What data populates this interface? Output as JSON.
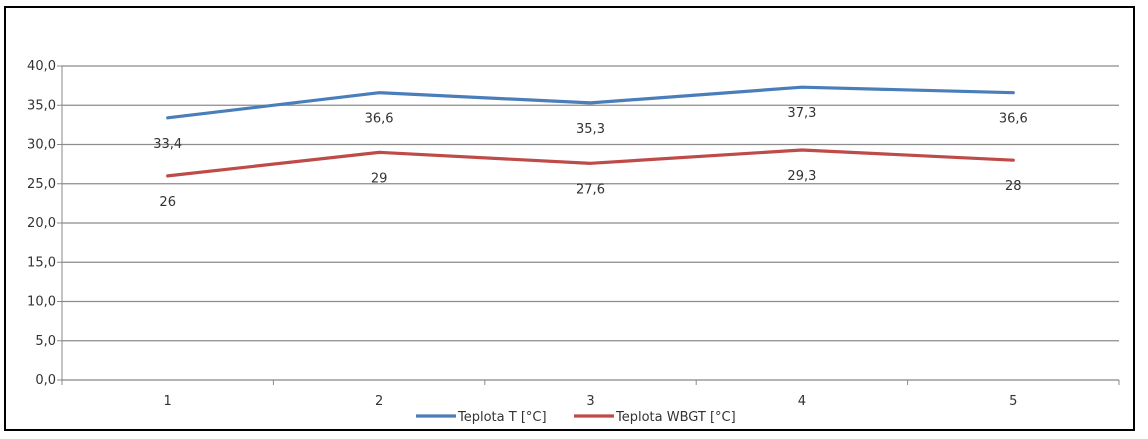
{
  "chart_data": {
    "type": "line",
    "title": "",
    "xlabel": "",
    "ylabel": "",
    "categories": [
      "1",
      "2",
      "3",
      "4",
      "5"
    ],
    "ylim": [
      0,
      40
    ],
    "ytick_step": 5,
    "y_ticks": [
      "0,0",
      "5,0",
      "10,0",
      "15,0",
      "20,0",
      "25,0",
      "30,0",
      "35,0",
      "40,0"
    ],
    "grid": true,
    "legend": "bottom",
    "series": [
      {
        "name": "Teplota T [°C]",
        "color": "#4A7EBB",
        "values": [
          33.4,
          36.6,
          35.3,
          37.3,
          36.6
        ],
        "labels": [
          "33,4",
          "36,6",
          "35,3",
          "37,3",
          "36,6"
        ]
      },
      {
        "name": "Teplota WBGT [°C]",
        "color": "#BE4B48",
        "values": [
          26,
          29,
          27.6,
          29.3,
          28
        ],
        "labels": [
          "26",
          "29",
          "27,6",
          "29,3",
          "28"
        ]
      }
    ]
  }
}
